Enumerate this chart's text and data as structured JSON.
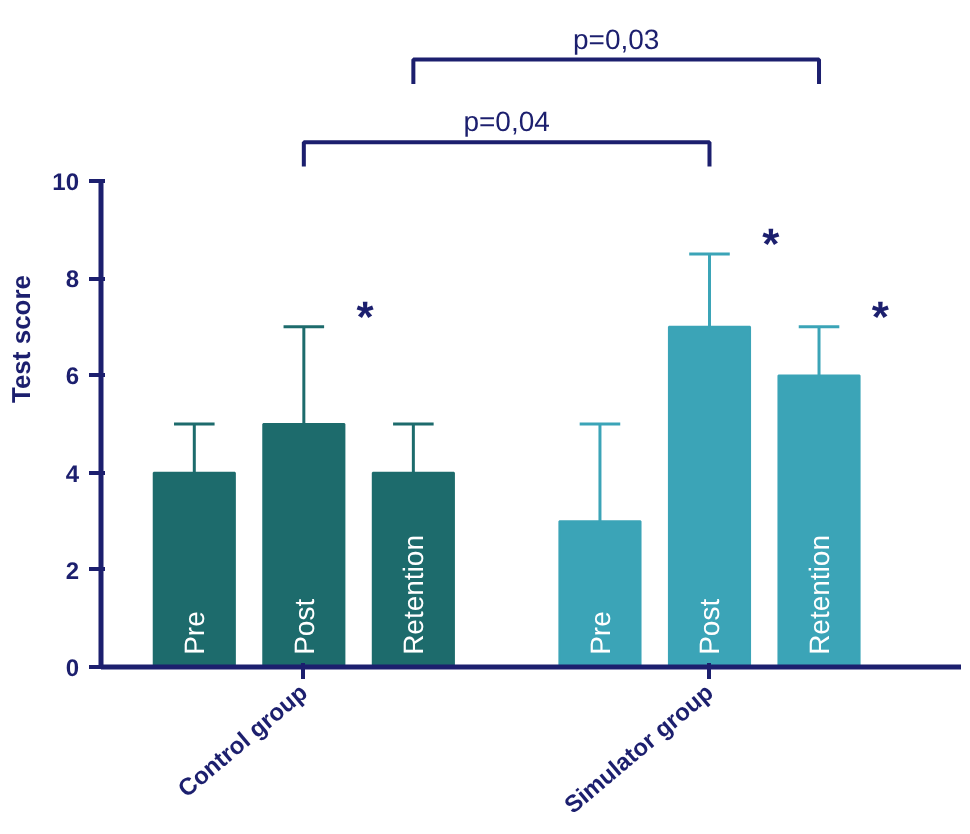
{
  "chart_data": {
    "type": "bar",
    "ylabel": "Test score",
    "categories": [
      "Control group",
      "Simulator group"
    ],
    "series": [
      {
        "name": "Pre",
        "colors": [
          "#1d6b6c",
          "#3ba4b7"
        ],
        "values": [
          4,
          3
        ],
        "errors": [
          [
            4,
            5
          ],
          [
            3,
            5
          ]
        ]
      },
      {
        "name": "Post",
        "colors": [
          "#1d6b6c",
          "#3ba4b7"
        ],
        "values": [
          5,
          7
        ],
        "errors": [
          [
            5,
            7
          ],
          [
            7,
            8.5
          ]
        ]
      },
      {
        "name": "Retention",
        "colors": [
          "#1d6b6c",
          "#3ba4b7"
        ],
        "values": [
          4,
          6
        ],
        "errors": [
          [
            4,
            5
          ],
          [
            6,
            7
          ]
        ]
      }
    ],
    "ylim": [
      0,
      10
    ],
    "yticks": [
      0,
      2,
      4,
      6,
      8,
      10
    ],
    "grid": false,
    "annotations": [
      "p=0,04",
      "p=0,03",
      "*",
      "*",
      "*"
    ]
  }
}
